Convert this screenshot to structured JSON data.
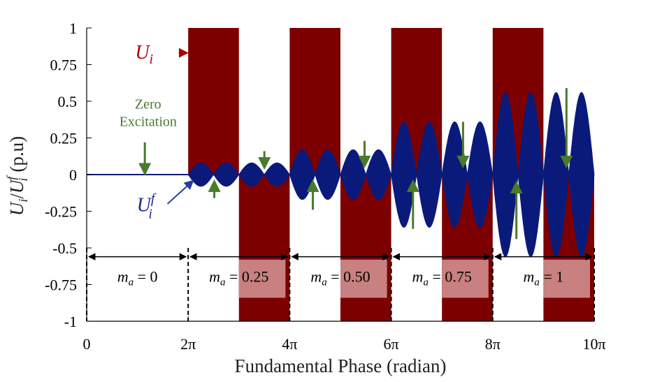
{
  "chart_data": {
    "type": "area",
    "xlabel": "Fundamental Phase (radian)",
    "ylabel": "U_i/U_i^f (p.u)",
    "ylabel_parts": {
      "main": "U",
      "sub1": "i",
      "slash": "/",
      "main2": "U",
      "sub2": "i",
      "sup2": "f",
      "unit": "(p.u)"
    },
    "xlim": [
      0,
      31.416
    ],
    "ylim": [
      -1,
      1
    ],
    "x_ticks": [
      {
        "value": 0,
        "label": "0"
      },
      {
        "value": 6.283,
        "label": "2π"
      },
      {
        "value": 12.566,
        "label": "4π"
      },
      {
        "value": 18.85,
        "label": "6π"
      },
      {
        "value": 25.133,
        "label": "8π"
      },
      {
        "value": 31.416,
        "label": "10π"
      }
    ],
    "y_ticks": [
      {
        "value": 1,
        "label": "1"
      },
      {
        "value": 0.75,
        "label": "0.75"
      },
      {
        "value": 0.5,
        "label": "0.5"
      },
      {
        "value": 0.25,
        "label": "0.25"
      },
      {
        "value": 0,
        "label": "0"
      },
      {
        "value": -0.25,
        "label": "-0.25"
      },
      {
        "value": -0.5,
        "label": "-0.5"
      },
      {
        "value": -0.75,
        "label": "-0.75"
      },
      {
        "value": -1,
        "label": "-1"
      }
    ],
    "series": [
      {
        "name": "U_i",
        "kind": "pulse",
        "color": "#7d0000",
        "pulses": [
          {
            "x_start": 6.283,
            "x_end": 9.425,
            "y": 1
          },
          {
            "x_start": 9.425,
            "x_end": 12.566,
            "y": -1
          },
          {
            "x_start": 12.566,
            "x_end": 15.708,
            "y": 1
          },
          {
            "x_start": 15.708,
            "x_end": 18.85,
            "y": -1
          },
          {
            "x_start": 18.85,
            "x_end": 21.991,
            "y": 1
          },
          {
            "x_start": 21.991,
            "x_end": 25.133,
            "y": -1
          },
          {
            "x_start": 25.133,
            "x_end": 28.274,
            "y": 1
          },
          {
            "x_start": 28.274,
            "x_end": 31.416,
            "y": -1
          }
        ]
      },
      {
        "name": "U_i^f",
        "kind": "envelope",
        "color": "#0a1a7a",
        "segments": [
          {
            "x_start": 0,
            "x_end": 6.283,
            "amplitude": 0,
            "lobes": 0
          },
          {
            "x_start": 6.283,
            "x_end": 12.566,
            "amplitude": 0.08,
            "lobes": 4
          },
          {
            "x_start": 12.566,
            "x_end": 18.85,
            "amplitude": 0.17,
            "lobes": 4
          },
          {
            "x_start": 18.85,
            "x_end": 25.133,
            "amplitude": 0.36,
            "lobes": 4
          },
          {
            "x_start": 25.133,
            "x_end": 31.416,
            "amplitude": 0.56,
            "lobes": 4
          }
        ]
      }
    ],
    "modulation_segments": [
      {
        "x_start": 0,
        "x_end": 6.283,
        "label_var": "m",
        "label_sub": "a",
        "label_value": " = 0"
      },
      {
        "x_start": 6.283,
        "x_end": 12.566,
        "label_var": "m",
        "label_sub": "a",
        "label_value": " = 0.25"
      },
      {
        "x_start": 12.566,
        "x_end": 18.85,
        "label_var": "m",
        "label_sub": "a",
        "label_value": " = 0.50"
      },
      {
        "x_start": 18.85,
        "x_end": 25.133,
        "label_var": "m",
        "label_sub": "a",
        "label_value": " = 0.75"
      },
      {
        "x_start": 25.133,
        "x_end": 31.416,
        "label_var": "m",
        "label_sub": "a",
        "label_value": " = 1"
      }
    ],
    "annotations": {
      "zero_excitation_line1": "Zero",
      "zero_excitation_line2": "Excitation",
      "ui_label_main": "U",
      "ui_label_sub": "i",
      "uif_label_main": "U",
      "uif_label_sub": "i",
      "uif_label_sup": "f"
    },
    "green_arrows": [
      {
        "x": 3.6,
        "y_tail": 0.22,
        "y_head": 0.01,
        "direction": "down"
      },
      {
        "x": 7.9,
        "y_tail": -0.16,
        "y_head": -0.05,
        "direction": "up"
      },
      {
        "x": 11.0,
        "y_tail": 0.16,
        "y_head": 0.05,
        "direction": "down"
      },
      {
        "x": 14.0,
        "y_tail": -0.24,
        "y_head": -0.05,
        "direction": "up"
      },
      {
        "x": 17.2,
        "y_tail": 0.23,
        "y_head": 0.06,
        "direction": "down"
      },
      {
        "x": 20.2,
        "y_tail": -0.37,
        "y_head": -0.05,
        "direction": "up"
      },
      {
        "x": 23.3,
        "y_tail": 0.36,
        "y_head": 0.06,
        "direction": "down"
      },
      {
        "x": 26.6,
        "y_tail": -0.44,
        "y_head": -0.06,
        "direction": "up"
      },
      {
        "x": 29.7,
        "y_tail": 0.59,
        "y_head": 0.06,
        "direction": "down"
      }
    ],
    "colors": {
      "pulse": "#7d0000",
      "envelope": "#0a1a7a",
      "green": "#4a7a2c",
      "label_overlay": "#c88080"
    },
    "grid": false,
    "legend": "none"
  }
}
